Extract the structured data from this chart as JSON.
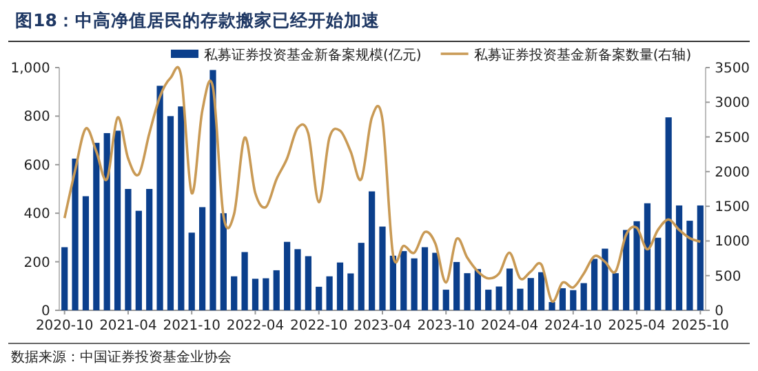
{
  "chart_data": {
    "type": "bar",
    "title": "图18：中高净值居民的存款搬家已经开始加速",
    "categories": [
      "2020-10",
      null,
      null,
      null,
      null,
      null,
      "2021-04",
      null,
      null,
      null,
      null,
      null,
      "2021-10",
      null,
      null,
      null,
      null,
      null,
      "2022-04",
      null,
      null,
      null,
      null,
      null,
      "2022-10",
      null,
      null,
      null,
      null,
      null,
      "2023-04",
      null,
      null,
      null,
      null,
      null,
      "2023-10",
      null,
      null,
      null,
      null,
      null,
      "2024-04",
      null,
      null,
      null,
      null,
      null,
      "2024-10",
      null,
      null,
      null,
      null,
      null,
      "2025-04",
      null,
      null,
      null,
      null,
      null,
      "2025-10"
    ],
    "series": [
      {
        "name": "私募证券投资基金新备案规模(亿元)",
        "color": "#0b3f8c",
        "values": [
          260,
          625,
          470,
          690,
          730,
          740,
          500,
          410,
          500,
          925,
          800,
          840,
          320,
          425,
          990,
          400,
          140,
          240,
          130,
          132,
          165,
          282,
          252,
          223,
          97,
          140,
          197,
          152,
          278,
          490,
          345,
          225,
          244,
          214,
          260,
          237,
          85,
          199,
          153,
          170,
          85,
          98,
          172,
          89,
          133,
          157,
          34,
          91,
          83,
          112,
          212,
          254,
          153,
          331,
          367,
          441,
          299,
          795,
          432,
          369,
          432
        ]
      },
      {
        "name": "私募证券投资基金新备案数量(右轴)",
        "type": "line",
        "axis": "y2",
        "color": "#c99a55",
        "values": [
          1330,
          2020,
          2620,
          2290,
          1890,
          2780,
          2190,
          1960,
          2550,
          3080,
          3350,
          3380,
          1690,
          2880,
          3220,
          1360,
          1390,
          2490,
          1690,
          1490,
          1890,
          2190,
          2630,
          2550,
          1560,
          2490,
          2590,
          2290,
          1890,
          2780,
          2750,
          800,
          930,
          830,
          1130,
          960,
          400,
          1030,
          760,
          560,
          460,
          530,
          830,
          460,
          560,
          660,
          130,
          400,
          330,
          530,
          780,
          700,
          560,
          1090,
          1190,
          880,
          1160,
          1310,
          1160,
          1040,
          990
        ]
      }
    ],
    "ylim": [
      0,
      1000
    ],
    "yticks": [
      0,
      200,
      400,
      600,
      800,
      {
        "value": 1000,
        "label": "1,000"
      }
    ],
    "y2lim": [
      0,
      3500
    ],
    "y2ticks": [
      0,
      500,
      1000,
      1500,
      2000,
      2500,
      3000,
      3500
    ],
    "legend": "top",
    "grid": false,
    "annotations": [
      "数据来源：中国证券投资基金业协会"
    ]
  }
}
